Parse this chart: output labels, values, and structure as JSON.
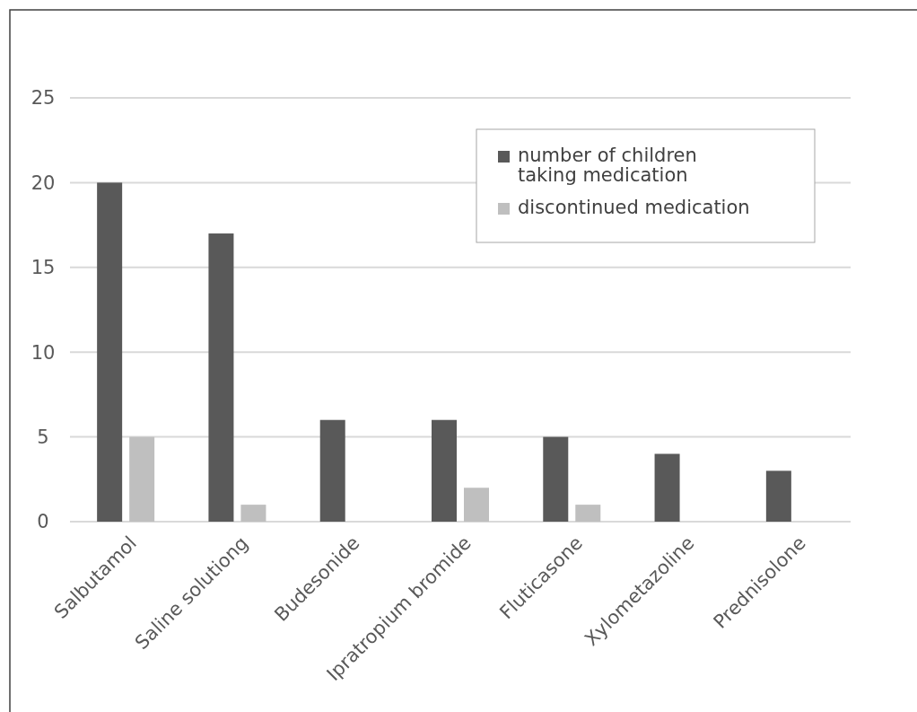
{
  "chart_data": {
    "type": "bar",
    "categories": [
      "Salbutamol",
      "Saline solutiong",
      "Budesonide",
      "Ipratropium bromide",
      "Fluticasone",
      "Xylometazoline",
      "Prednisolone"
    ],
    "series": [
      {
        "name": "number of children taking medication",
        "color": "#595959",
        "values": [
          20,
          17,
          6,
          6,
          5,
          4,
          3
        ]
      },
      {
        "name": "discontinued medication",
        "color": "#bfbfbf",
        "values": [
          5,
          1,
          null,
          2,
          1,
          null,
          null
        ]
      }
    ],
    "ylim": [
      0,
      25
    ],
    "yticks": [
      0,
      5,
      10,
      15,
      20,
      25
    ],
    "grid": "y",
    "legend": "top right"
  }
}
